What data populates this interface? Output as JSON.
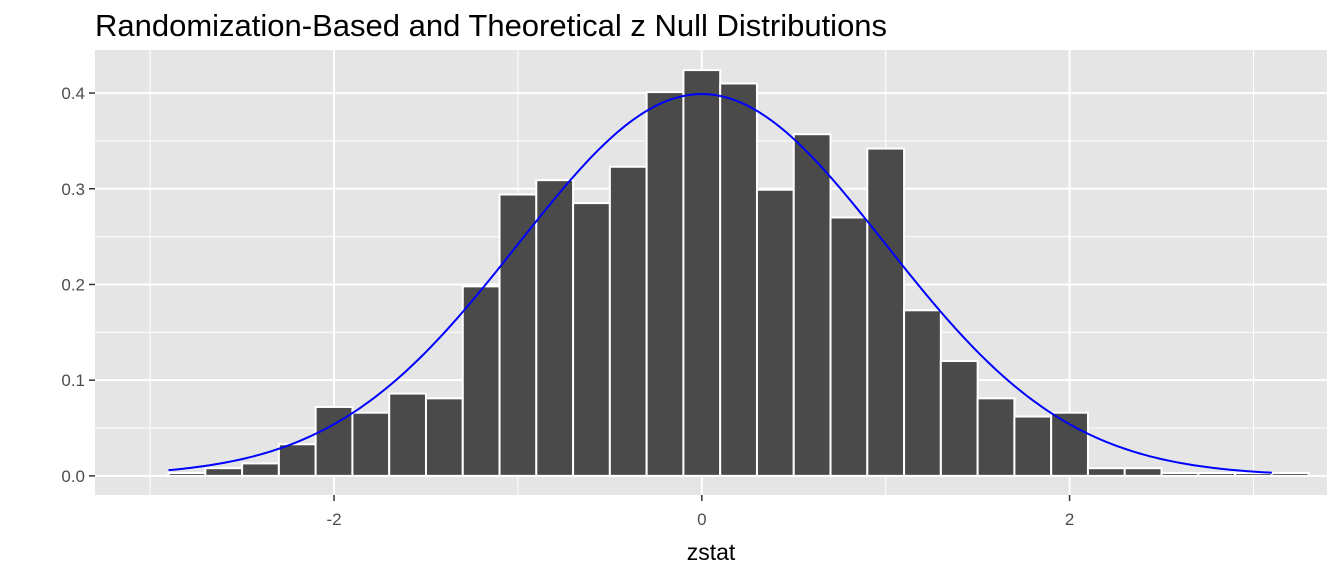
{
  "chart_data": {
    "type": "bar",
    "title": "Randomization-Based and Theoretical z Null Distributions",
    "xlabel": "zstat",
    "ylabel": "",
    "xlim": [
      -3.3,
      3.4
    ],
    "ylim": [
      -0.02,
      0.445
    ],
    "x_ticks": [
      -2,
      0,
      2
    ],
    "x_tick_labels": [
      "-2",
      "0",
      "2"
    ],
    "y_ticks": [
      0.0,
      0.1,
      0.2,
      0.3,
      0.4
    ],
    "y_tick_labels": [
      "0.0",
      "0.1",
      "0.2",
      "0.3",
      "0.4"
    ],
    "grid": true,
    "histogram": {
      "bin_width": 0.2,
      "bin_centers": [
        -2.8,
        -2.6,
        -2.4,
        -2.2,
        -2.0,
        -1.8,
        -1.6,
        -1.4,
        -1.2,
        -1.0,
        -0.8,
        -0.6,
        -0.4,
        -0.2,
        0.0,
        0.2,
        0.4,
        0.6,
        0.8,
        1.0,
        1.2,
        1.4,
        1.6,
        1.8,
        2.0,
        2.2,
        2.4,
        2.6,
        2.8,
        3.0,
        3.2
      ],
      "values": [
        0.003,
        0.008,
        0.013,
        0.033,
        0.072,
        0.066,
        0.086,
        0.081,
        0.198,
        0.294,
        0.309,
        0.285,
        0.323,
        0.401,
        0.424,
        0.41,
        0.299,
        0.357,
        0.27,
        0.342,
        0.173,
        0.12,
        0.081,
        0.062,
        0.066,
        0.008,
        0.008,
        0.003,
        0.003,
        0.003,
        0.003
      ],
      "fill_color": "#4a4a4a",
      "edge_color": "#ffffff"
    },
    "curve": {
      "type": "line",
      "function": "standard normal density",
      "x_range": [
        -2.9,
        3.1
      ],
      "color": "#0000ff"
    },
    "colors": {
      "panel_background": "#e5e5e5",
      "grid": "#ffffff"
    }
  }
}
